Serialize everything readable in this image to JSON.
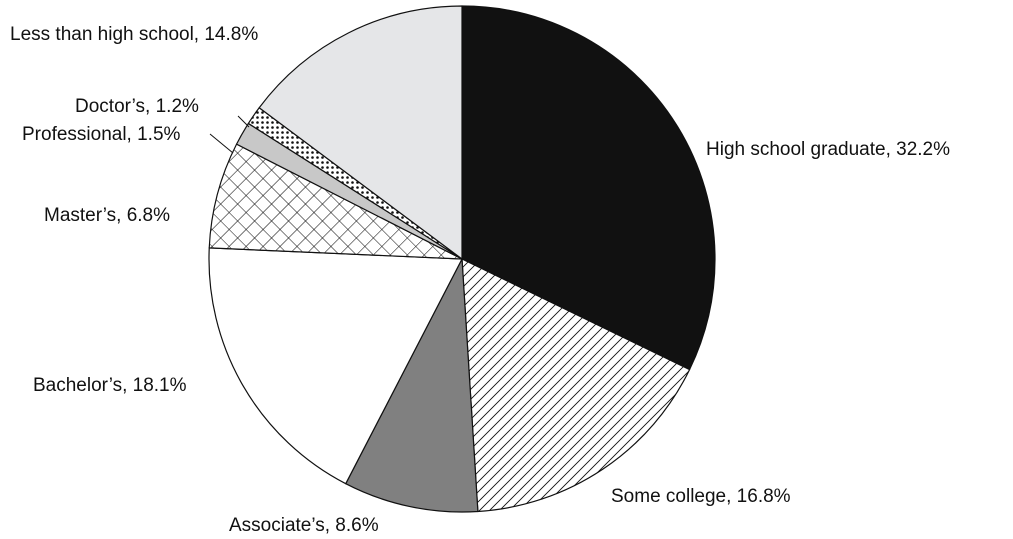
{
  "chart_data": {
    "type": "pie",
    "title": "",
    "slices": [
      {
        "name": "High school graduate",
        "value": 32.2,
        "label": "High school graduate,  32.2%",
        "fill": "#111111",
        "pattern": "solid"
      },
      {
        "name": "Some college",
        "value": 16.8,
        "label": "Some college, 16.8%",
        "fill": "#ffffff",
        "pattern": "diagonal-hatch"
      },
      {
        "name": "Associate’s",
        "value": 8.6,
        "label": "Associate’s, 8.6%",
        "fill": "#808080",
        "pattern": "solid"
      },
      {
        "name": "Bachelor’s",
        "value": 18.1,
        "label": "Bachelor’s, 18.1%",
        "fill": "#ffffff",
        "pattern": "solid"
      },
      {
        "name": "Master’s",
        "value": 6.8,
        "label": "Master’s, 6.8%",
        "fill": "#ffffff",
        "pattern": "crosshatch"
      },
      {
        "name": "Professional",
        "value": 1.5,
        "label": "Professional, 1.5%",
        "fill": "#c8c8c8",
        "pattern": "solid"
      },
      {
        "name": "Doctor’s",
        "value": 1.2,
        "label": "Doctor’s, 1.2%",
        "fill": "#ffffff",
        "pattern": "dots"
      },
      {
        "name": "Less than high school",
        "value": 14.8,
        "label": "Less than high school, 14.8%",
        "fill": "#e5e6e8",
        "pattern": "solid"
      }
    ],
    "start": "12 o'clock",
    "direction": "clockwise",
    "stroke": "#111111",
    "pattern_color": "#111111",
    "legend": "none"
  }
}
